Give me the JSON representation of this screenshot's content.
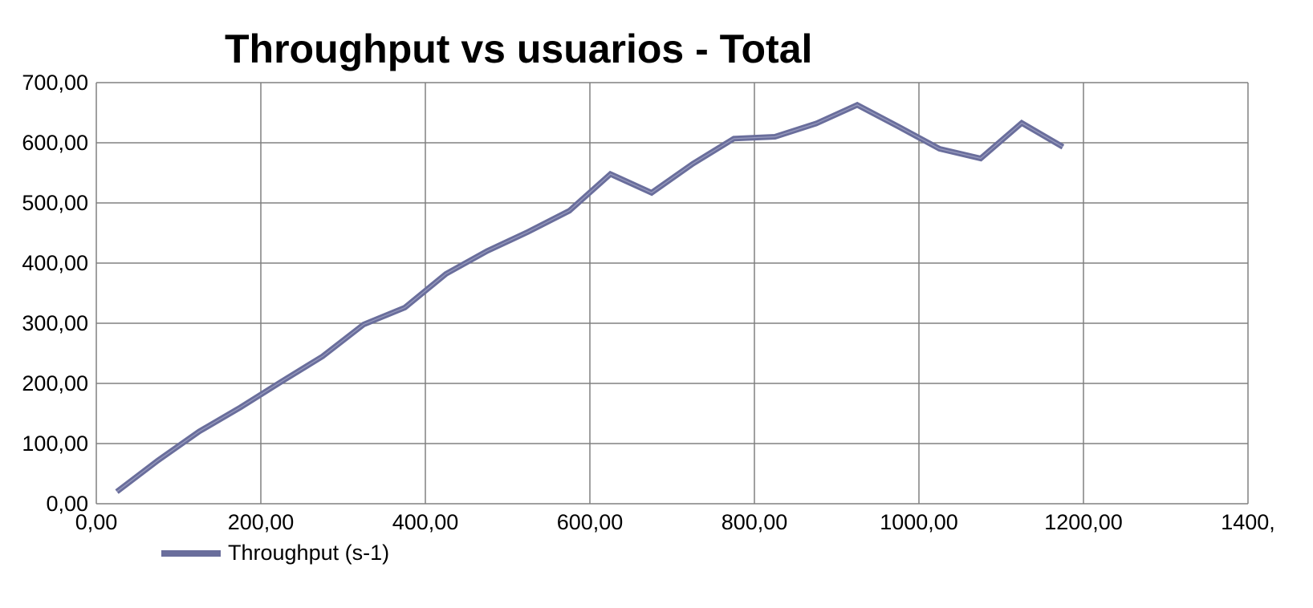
{
  "chart_data": {
    "type": "line",
    "title": "Throughput vs usuarios - Total",
    "xlabel": "",
    "ylabel": "",
    "xlim": [
      0,
      1400
    ],
    "ylim": [
      0,
      700
    ],
    "x_ticks": [
      "0,00",
      "200,00",
      "400,00",
      "600,00",
      "800,00",
      "1000,00",
      "1200,00",
      "1400,"
    ],
    "y_ticks": [
      "0,00",
      "100,00",
      "200,00",
      "300,00",
      "400,00",
      "500,00",
      "600,00",
      "700,00"
    ],
    "grid": true,
    "legend_position": "bottom-left",
    "series": [
      {
        "name": "Throughput  (s-1)",
        "color": "#6a6e9c",
        "x": [
          25,
          75,
          125,
          175,
          225,
          275,
          325,
          375,
          425,
          475,
          525,
          575,
          625,
          675,
          725,
          775,
          825,
          875,
          925,
          975,
          1025,
          1075,
          1125,
          1175
        ],
        "y": [
          20,
          72,
          120,
          160,
          203,
          245,
          298,
          326,
          382,
          420,
          452,
          487,
          548,
          517,
          565,
          607,
          610,
          632,
          663,
          627,
          590,
          574,
          633,
          593
        ]
      }
    ]
  }
}
